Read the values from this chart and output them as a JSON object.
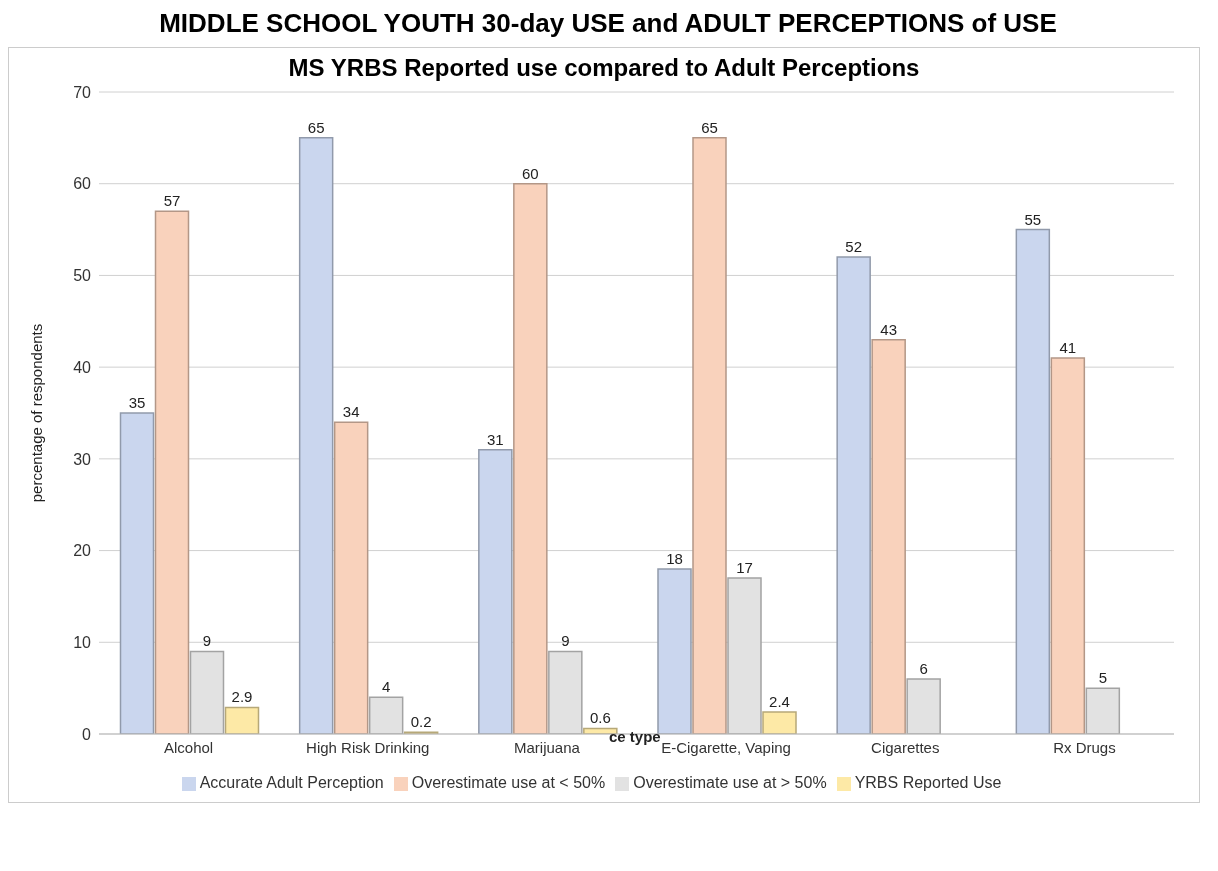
{
  "chart_data": {
    "type": "bar",
    "title": "MIDDLE SCHOOL YOUTH 30-day USE and ADULT PERCEPTIONS of USE",
    "subtitle": "MS YRBS Reported use compared to Adult Perceptions",
    "ylabel": "percentage of respondents",
    "categories": [
      "Alcohol",
      "High Risk Drinking",
      "Marijuana",
      "E-Cigarette, Vaping",
      "Cigarettes",
      "Rx Drugs"
    ],
    "series": [
      {
        "name": "Accurate Adult Perception",
        "color": "#cad6ee",
        "values": [
          35,
          65,
          31,
          18,
          52,
          55
        ],
        "value_labels": [
          "35",
          "65",
          "31",
          "18",
          "52",
          "55"
        ]
      },
      {
        "name": "Overestimate use at < 50%",
        "color": "#f9d2bc",
        "values": [
          57,
          34,
          60,
          65,
          43,
          41
        ],
        "value_labels": [
          "57",
          "34",
          "60",
          "65",
          "43",
          "41"
        ]
      },
      {
        "name": "Overestimate use at > 50%",
        "color": "#e2e2e2",
        "values": [
          9,
          4,
          9,
          17,
          6,
          5
        ],
        "value_labels": [
          "9",
          "4",
          "9",
          "17",
          "6",
          "5"
        ]
      },
      {
        "name": "YRBS Reported Use",
        "color": "#fde9a6",
        "values": [
          2.9,
          0.2,
          0.6,
          2.4,
          0,
          0
        ],
        "value_labels": [
          "2.9",
          "0.2",
          "0.6",
          "2.4",
          null,
          null
        ]
      }
    ],
    "ylim": [
      0,
      70
    ],
    "yticks": [
      0,
      10,
      20,
      30,
      40,
      50,
      60,
      70
    ],
    "grid": "y",
    "legend": "bottom",
    "annotations": [
      "ce type"
    ]
  }
}
